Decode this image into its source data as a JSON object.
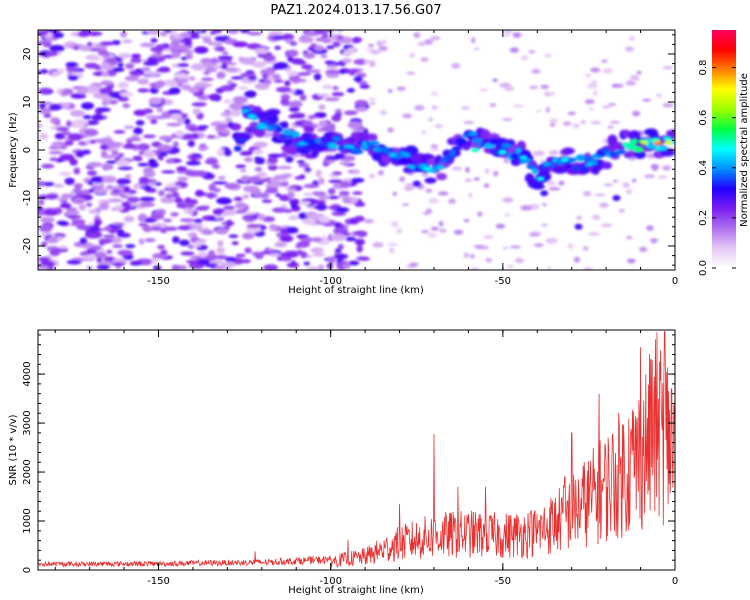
{
  "chart_data": [
    {
      "type": "heatmap",
      "title": "PAZ1.2024.013.17.56.G07",
      "xlabel": "Height of straight line (km)",
      "ylabel": "Frequency (Hz)",
      "xlim": [
        -185,
        0
      ],
      "ylim": [
        -25,
        25
      ],
      "x_ticks": [
        -150,
        -100,
        -50,
        0
      ],
      "y_ticks": [
        -20,
        -10,
        0,
        10,
        20
      ],
      "colorbar": {
        "label": "Normalized spectral amplitude",
        "range": [
          0,
          0.95
        ],
        "ticks": [
          0.0,
          0.2,
          0.4,
          0.6,
          0.8
        ],
        "colormap": [
          "#ffffff",
          "#e6c8f5",
          "#b070f0",
          "#7a1ef0",
          "#2000ff",
          "#0090ff",
          "#00ffff",
          "#00ff40",
          "#a0ff00",
          "#ffff00",
          "#ff8000",
          "#ff0000",
          "#ff0060"
        ]
      },
      "ridge": {
        "description_points_km_hz": [
          [
            -125,
            7
          ],
          [
            -110,
            2
          ],
          [
            -95,
            1
          ],
          [
            -85,
            0
          ],
          [
            -75,
            -3
          ],
          [
            -70,
            -5
          ],
          [
            -60,
            3
          ],
          [
            -50,
            0
          ],
          [
            -45,
            -1
          ],
          [
            -40,
            -6
          ],
          [
            -35,
            -2
          ],
          [
            -25,
            -3
          ],
          [
            -15,
            1
          ],
          [
            -8,
            1.5
          ],
          [
            0,
            1.5
          ]
        ]
      }
    },
    {
      "type": "line",
      "xlabel": "Height of straight line (km)",
      "ylabel": "SNR (10 * v/v)",
      "xlim": [
        -185,
        0
      ],
      "ylim": [
        0,
        4900
      ],
      "x_ticks": [
        -150,
        -100,
        -50,
        0
      ],
      "y_ticks": [
        0,
        1000,
        2000,
        3000,
        4000
      ],
      "line_color": "#e83030",
      "envelope_km_snr": [
        [
          -185,
          130
        ],
        [
          -150,
          140
        ],
        [
          -120,
          170
        ],
        [
          -100,
          230
        ],
        [
          -90,
          350
        ],
        [
          -80,
          700
        ],
        [
          -70,
          900
        ],
        [
          -60,
          950
        ],
        [
          -50,
          900
        ],
        [
          -40,
          1000
        ],
        [
          -30,
          1500
        ],
        [
          -20,
          2200
        ],
        [
          -10,
          3000
        ],
        [
          -5,
          3800
        ],
        [
          0,
          3300
        ]
      ],
      "spikes_km_snr": [
        [
          -122,
          380
        ],
        [
          -95,
          620
        ],
        [
          -80,
          1350
        ],
        [
          -70,
          2780
        ],
        [
          -63,
          1700
        ],
        [
          -55,
          1700
        ],
        [
          -42,
          1150
        ],
        [
          -32,
          1900
        ],
        [
          -30,
          2800
        ],
        [
          -22,
          3600
        ],
        [
          -13,
          2700
        ],
        [
          -10,
          4550
        ],
        [
          -7,
          4300
        ],
        [
          -3,
          4870
        ],
        [
          -1,
          3700
        ]
      ]
    }
  ]
}
